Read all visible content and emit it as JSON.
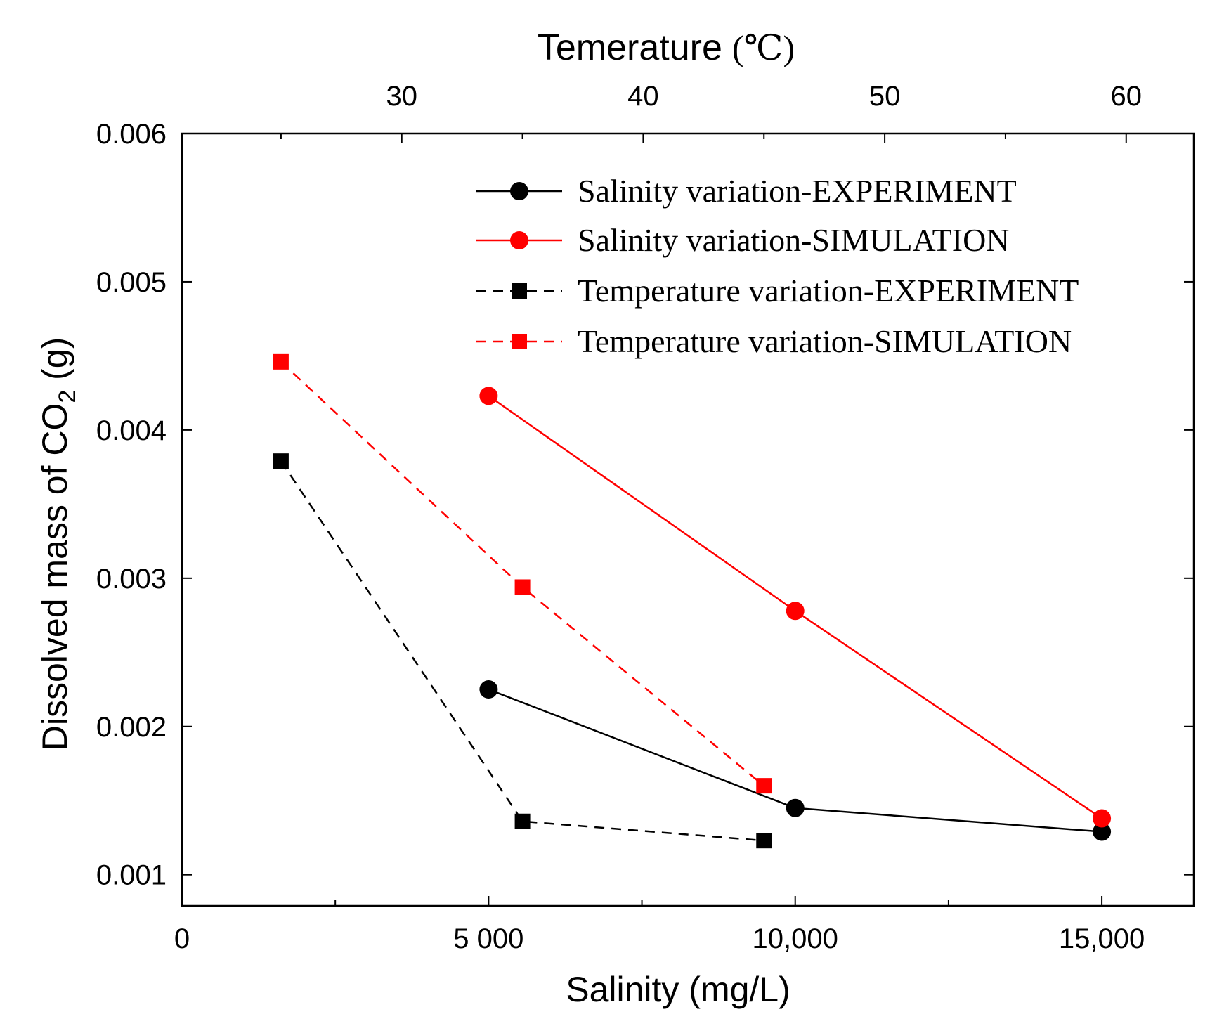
{
  "chart_data": {
    "type": "line",
    "top_axis": {
      "label": "Temerature",
      "unit": "(℃)",
      "ticks": [
        30,
        40,
        50,
        60
      ],
      "tick_labels": [
        "30",
        "40",
        "50",
        "60"
      ],
      "range": [
        20.9,
        62.8
      ]
    },
    "bottom_axis": {
      "label": "Salinity (mg/L)",
      "ticks": [
        0,
        5000,
        10000,
        15000
      ],
      "tick_labels": [
        "0",
        "5 000",
        "10,000",
        "15,000"
      ],
      "minor_ticks": [
        2500,
        7500,
        12500
      ],
      "range": [
        0,
        16500
      ]
    },
    "y_axis": {
      "label_main": "Dissolved mass of CO",
      "label_sub": "2",
      "label_unit": " (g)",
      "ticks": [
        0.001,
        0.002,
        0.003,
        0.004,
        0.005,
        0.006
      ],
      "tick_labels": [
        "0.001",
        "0.002",
        "0.003",
        "0.004",
        "0.005",
        "0.006"
      ],
      "range": [
        0.00079,
        0.006
      ]
    },
    "legend_position": "top-right",
    "series": [
      {
        "name": "Salinity variation-EXPERIMENT",
        "axis": "bottom",
        "color": "#000000",
        "dash": "solid",
        "marker": "circle",
        "x": [
          5000,
          10000,
          15000
        ],
        "y": [
          0.00225,
          0.00145,
          0.00129
        ]
      },
      {
        "name": "Salinity variation-SIMULATION",
        "axis": "bottom",
        "color": "#ff0000",
        "dash": "solid",
        "marker": "circle",
        "x": [
          5000,
          10000,
          15000
        ],
        "y": [
          0.00423,
          0.00278,
          0.00138
        ]
      },
      {
        "name": "Temperature variation-EXPERIMENT",
        "axis": "top",
        "color": "#000000",
        "dash": "dashed",
        "marker": "square",
        "x": [
          25,
          35,
          45
        ],
        "y": [
          0.00379,
          0.00136,
          0.00123
        ]
      },
      {
        "name": "Temperature variation-SIMULATION",
        "axis": "top",
        "color": "#ff0000",
        "dash": "dashed",
        "marker": "square",
        "x": [
          25,
          35,
          45
        ],
        "y": [
          0.00446,
          0.00294,
          0.0016
        ]
      }
    ]
  }
}
